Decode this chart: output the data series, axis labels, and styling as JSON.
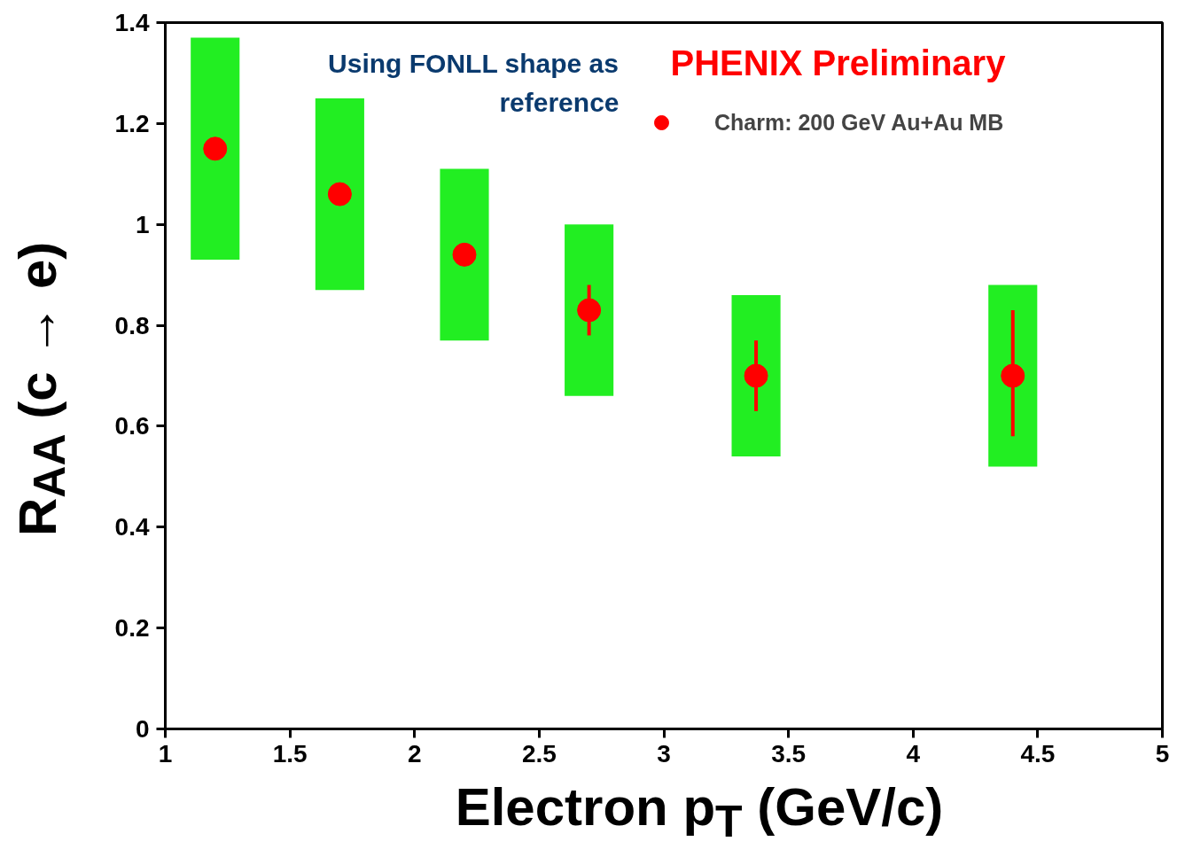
{
  "chart_data": {
    "type": "scatter",
    "xlabel": "Electron p$_{T}$ (GeV/c)",
    "ylabel": "R$_{AA}$ (c → e)",
    "annotations": [
      "Using FONLL shape as\nreference",
      "PHENIX Preliminary"
    ],
    "series": [
      {
        "type": "bar",
        "color": "#22ee22",
        "x": [
          1.2,
          1.7,
          2.2,
          2.7,
          3.37,
          4.4
        ],
        "base": [
          0.93,
          0.87,
          0.77,
          0.66,
          0.54,
          0.52
        ],
        "values": [
          0.44,
          0.38,
          0.34,
          0.34,
          0.32,
          0.36
        ]
      },
      {
        "name": "Charm: 200 GeV Au+Au MB",
        "color": "#ff0000",
        "x": [
          1.2,
          1.7,
          2.2,
          2.7,
          3.37,
          4.4
        ],
        "values": [
          1.15,
          1.06,
          0.94,
          0.83,
          0.7,
          0.7
        ],
        "errors": [
          null,
          null,
          null,
          [
            0.78,
            0.88
          ],
          [
            0.63,
            0.77
          ],
          [
            0.58,
            0.83
          ]
        ]
      }
    ],
    "xlim": [
      1,
      5
    ],
    "ylim": [
      0,
      1.4
    ],
    "xticks": [
      1,
      1.5,
      2,
      2.5,
      3,
      3.5,
      4,
      4.5,
      5
    ],
    "yticks": [
      0,
      0.2,
      0.4,
      0.6,
      0.8,
      1,
      1.2,
      1.4
    ],
    "marker": "circle",
    "grid": false,
    "legend": "top right"
  }
}
